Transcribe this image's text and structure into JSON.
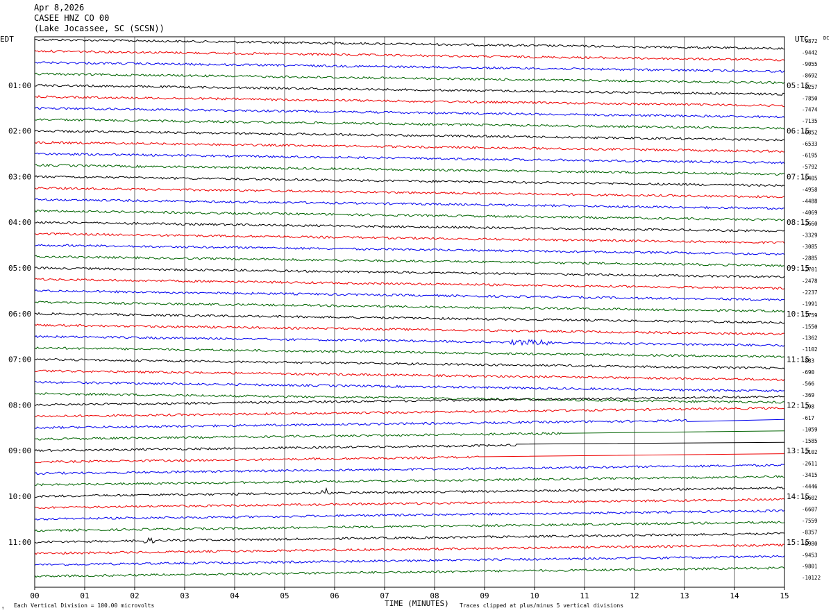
{
  "header": {
    "date": "Apr 8,2026",
    "station": "CASEE HNZ CO 00",
    "location": "(Lake Jocassee, SC (SCSN))"
  },
  "chart_data": {
    "type": "line",
    "left_timezone": "EDT",
    "right_timezone": "UTC",
    "left_time_labels": [
      "01:00",
      "02:00",
      "03:00",
      "04:00",
      "05:00",
      "06:00",
      "07:00",
      "08:00",
      "09:00",
      "10:00",
      "11:00"
    ],
    "right_time_labels": [
      "05:15",
      "06:15",
      "07:15",
      "08:15",
      "09:15",
      "10:15",
      "11:15",
      "12:15",
      "13:15",
      "14:15",
      "15:15"
    ],
    "dc_label": "DC",
    "right_offsets": [
      "-9872",
      "-9442",
      "-9055",
      "-8692",
      "-8257",
      "-7850",
      "-7474",
      "-7135",
      "-6852",
      "-6533",
      "-6195",
      "-5792",
      "-5405",
      "-4958",
      "-4488",
      "-4069",
      "-3660",
      "-3329",
      "-3085",
      "-2885",
      "-2701",
      "-2478",
      "-2237",
      "-1991",
      "-1759",
      "-1550",
      "-1362",
      "-1102",
      "-883",
      "-690",
      "-566",
      "-369",
      "-298",
      "-617",
      "-1059",
      "-1585",
      "-2102",
      "-2611",
      "-3415",
      "-4446",
      "-5602",
      "-6607",
      "-7559",
      "-8357",
      "-8980",
      "-9453",
      "-9801",
      "-10122"
    ],
    "x_tick_labels": [
      "00",
      "01",
      "02",
      "03",
      "04",
      "05",
      "06",
      "07",
      "08",
      "09",
      "10",
      "11",
      "12",
      "13",
      "14",
      "15"
    ],
    "x_range": [
      0,
      15
    ],
    "xlabel": "TIME (MINUTES)",
    "footer_left": "Each Vertical Division =  100.00 microvolts",
    "footer_right": "Traces clipped at plus/minus 5 vertical divisions",
    "footer_mark": "↑",
    "trace_colors": [
      "#000000",
      "#ee0000",
      "#0000ee",
      "#006400"
    ],
    "grid": true
  }
}
